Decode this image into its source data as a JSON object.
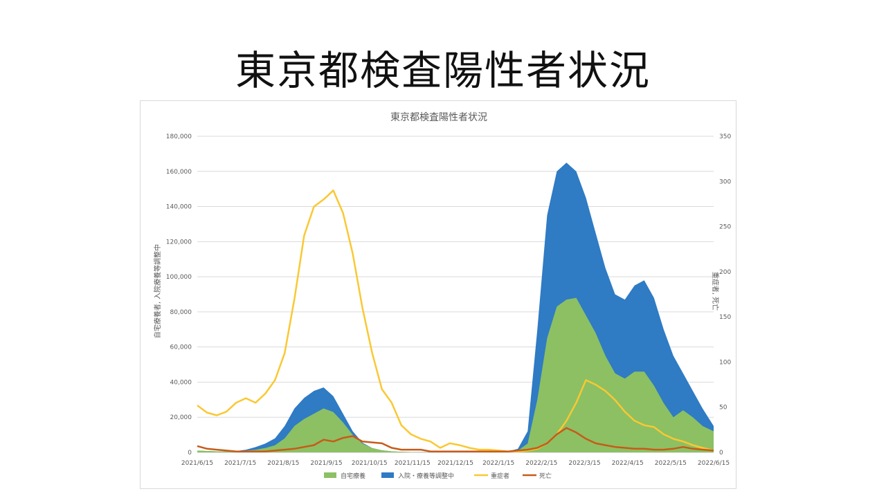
{
  "slide": {
    "title": "東京都検査陽性者状況"
  },
  "chart_data": {
    "type": "area",
    "title": "東京都検査陽性者状況",
    "ylabel_left": "自宅療養者, 入院療養等調整中",
    "ylabel_right": "重症者, 死亡",
    "ylim_left": [
      0,
      180000
    ],
    "ylim_right": [
      0,
      350
    ],
    "yticks_left": [
      "0",
      "20,000",
      "40,000",
      "60,000",
      "80,000",
      "100,000",
      "120,000",
      "140,000",
      "160,000",
      "180,000"
    ],
    "yticks_right": [
      "0",
      "50",
      "100",
      "150",
      "200",
      "250",
      "300",
      "350"
    ],
    "categories": [
      "2021/6/15",
      "2021/7/15",
      "2021/8/15",
      "2021/9/15",
      "2021/10/15",
      "2021/11/15",
      "2021/12/15",
      "2022/1/15",
      "2022/2/15",
      "2022/3/15",
      "2022/4/15",
      "2022/5/15",
      "2022/6/15"
    ],
    "x": [
      0,
      7,
      14,
      21,
      28,
      35,
      42,
      49,
      56,
      63,
      70,
      77,
      84,
      91,
      98,
      105,
      112,
      119,
      126,
      133,
      140,
      147,
      154,
      161,
      168,
      175,
      182,
      189,
      196,
      203,
      210,
      217,
      224,
      231,
      238,
      245,
      252,
      259,
      266,
      273,
      280,
      287,
      294,
      301,
      308,
      315,
      322,
      329,
      336,
      343,
      350,
      357,
      364,
      372
    ],
    "series": [
      {
        "name": "自宅療養",
        "axis": "left",
        "kind": "area",
        "color": "#8cc063",
        "values": [
          1000,
          800,
          600,
          500,
          700,
          1000,
          1500,
          2500,
          4000,
          8000,
          15000,
          19000,
          22000,
          25000,
          23000,
          17000,
          10000,
          5000,
          2500,
          1200,
          600,
          300,
          200,
          150,
          100,
          100,
          100,
          100,
          100,
          100,
          100,
          200,
          300,
          1000,
          5000,
          30000,
          65000,
          83000,
          87000,
          88000,
          78000,
          68000,
          55000,
          45000,
          42000,
          46000,
          46000,
          38000,
          28000,
          20000,
          24000,
          20000,
          15000,
          12000
        ]
      },
      {
        "name": "入院・療養等調整中",
        "axis": "left",
        "kind": "area",
        "color": "#2f7bc4",
        "values": [
          1000,
          800,
          600,
          500,
          800,
          1500,
          3000,
          5000,
          8000,
          15000,
          25000,
          31000,
          35000,
          37000,
          32000,
          22000,
          12000,
          5500,
          2500,
          1200,
          600,
          300,
          200,
          150,
          100,
          100,
          100,
          100,
          100,
          100,
          100,
          300,
          600,
          2000,
          12000,
          70000,
          135000,
          160000,
          165000,
          160000,
          145000,
          125000,
          105000,
          90000,
          87000,
          95000,
          98000,
          88000,
          70000,
          55000,
          45000,
          35000,
          25000,
          15000
        ]
      },
      {
        "name": "重症者",
        "axis": "right",
        "kind": "line",
        "color": "#fac832",
        "values": [
          52,
          44,
          41,
          45,
          55,
          60,
          55,
          65,
          80,
          110,
          170,
          240,
          272,
          280,
          290,
          265,
          220,
          160,
          110,
          70,
          55,
          30,
          20,
          15,
          12,
          5,
          10,
          8,
          5,
          3,
          3,
          2,
          1,
          1,
          2,
          4,
          10,
          20,
          35,
          55,
          80,
          75,
          68,
          58,
          45,
          35,
          30,
          28,
          20,
          15,
          12,
          8,
          5,
          2
        ]
      },
      {
        "name": "死亡",
        "axis": "right",
        "kind": "line",
        "color": "#c85a19",
        "values": [
          7,
          4,
          3,
          2,
          1,
          1,
          1,
          1,
          2,
          3,
          4,
          6,
          8,
          14,
          12,
          16,
          18,
          12,
          11,
          10,
          5,
          3,
          3,
          3,
          1,
          1,
          1,
          1,
          1,
          1,
          1,
          1,
          1,
          2,
          3,
          5,
          10,
          20,
          27,
          22,
          15,
          10,
          8,
          6,
          5,
          4,
          4,
          3,
          3,
          4,
          6,
          4,
          3,
          2
        ]
      }
    ],
    "legend_position": "bottom",
    "grid": true
  }
}
